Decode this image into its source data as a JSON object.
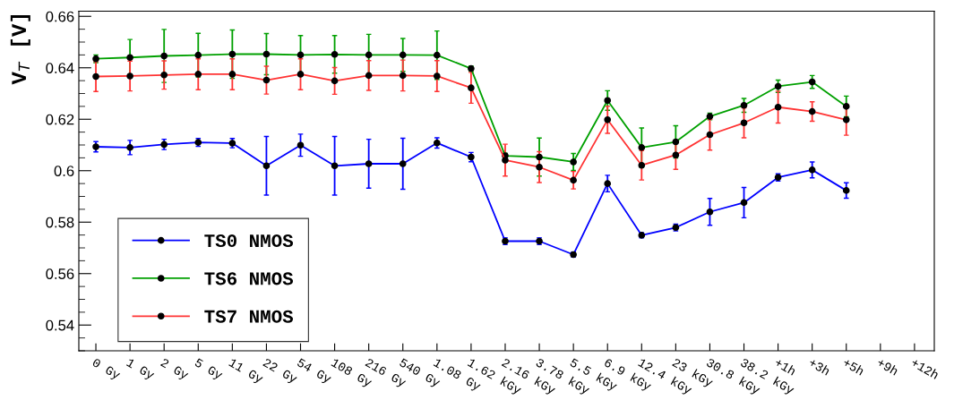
{
  "chart_data": {
    "type": "line",
    "ylabel": "V$_{T}$ [V]",
    "categories": [
      "0 Gy",
      "1 Gy",
      "2 Gy",
      "5 Gy",
      "11 Gy",
      "22 Gy",
      "54 Gy",
      "108 Gy",
      "216 Gy",
      "540 Gy",
      "1.08 Gy",
      "1.62 kGy",
      "2.16 kGy",
      "3.78 kGy",
      "5.5 kGy",
      "6.9 kGy",
      "12.4 kGy",
      "23 kGy",
      "30.8 kGy",
      "38.2 kGy",
      "+1h",
      "+3h",
      "+5h",
      "+9h",
      "+12h"
    ],
    "ylim": [
      0.53,
      0.662
    ],
    "yticks": [
      {
        "value": 0.54,
        "label": "0.54"
      },
      {
        "value": 0.56,
        "label": "0.56"
      },
      {
        "value": 0.58,
        "label": "0.58"
      },
      {
        "value": 0.6,
        "label": "0.6"
      },
      {
        "value": 0.62,
        "label": "0.62"
      },
      {
        "value": 0.64,
        "label": "0.64"
      },
      {
        "value": 0.66,
        "label": "0.66"
      }
    ],
    "grid": false,
    "legend": "bottom left",
    "marker": "circle",
    "line_style": "solid",
    "series": [
      {
        "name": "TS0 NMOS",
        "color": "#0000ff",
        "values": [
          0.6093,
          0.609,
          0.6102,
          0.611,
          0.6107,
          0.6019,
          0.6099,
          0.6019,
          0.6027,
          0.6027,
          0.6108,
          0.6053,
          0.5726,
          0.5726,
          0.5674,
          0.595,
          0.5749,
          0.5779,
          0.584,
          0.5876,
          0.5974,
          0.6003,
          0.5923,
          null,
          null
        ],
        "errors": [
          0.002,
          0.0028,
          0.002,
          0.0015,
          0.0018,
          0.0114,
          0.0043,
          0.0114,
          0.0095,
          0.0099,
          0.002,
          0.0018,
          0.0013,
          0.0013,
          0.001,
          0.0032,
          0.001,
          0.0013,
          0.0052,
          0.0059,
          0.0014,
          0.0031,
          0.003,
          null,
          null
        ]
      },
      {
        "name": "TS6 NMOS",
        "color": "#00a000",
        "values": [
          0.6435,
          0.644,
          0.6446,
          0.6449,
          0.6453,
          0.6453,
          0.645,
          0.6452,
          0.645,
          0.645,
          0.6449,
          0.6397,
          0.6058,
          0.6053,
          0.6034,
          0.6273,
          0.609,
          0.6112,
          0.6211,
          0.6254,
          0.6328,
          0.6345,
          0.625,
          null,
          null
        ],
        "errors": [
          0.0015,
          0.007,
          0.0103,
          0.0085,
          0.0094,
          0.008,
          0.0075,
          0.0073,
          0.008,
          0.0064,
          0.0094,
          0.001,
          0.001,
          0.0074,
          0.0033,
          0.0038,
          0.0076,
          0.0063,
          0.0013,
          0.0027,
          0.0024,
          0.0025,
          0.004,
          null,
          null
        ]
      },
      {
        "name": "TS7 NMOS",
        "color": "#ff3333",
        "values": [
          0.6366,
          0.6368,
          0.6372,
          0.6375,
          0.6375,
          0.6352,
          0.6375,
          0.6349,
          0.637,
          0.637,
          0.6368,
          0.6322,
          0.6041,
          0.6014,
          0.5963,
          0.6198,
          0.6021,
          0.6061,
          0.614,
          0.6186,
          0.6247,
          0.623,
          0.6198,
          null,
          null
        ],
        "errors": [
          0.0058,
          0.0058,
          0.0055,
          0.006,
          0.006,
          0.0054,
          0.006,
          0.0052,
          0.0058,
          0.006,
          0.006,
          0.006,
          0.0062,
          0.006,
          0.0034,
          0.0053,
          0.0057,
          0.0056,
          0.006,
          0.0058,
          0.0062,
          0.0038,
          0.006,
          null,
          null
        ]
      }
    ]
  }
}
